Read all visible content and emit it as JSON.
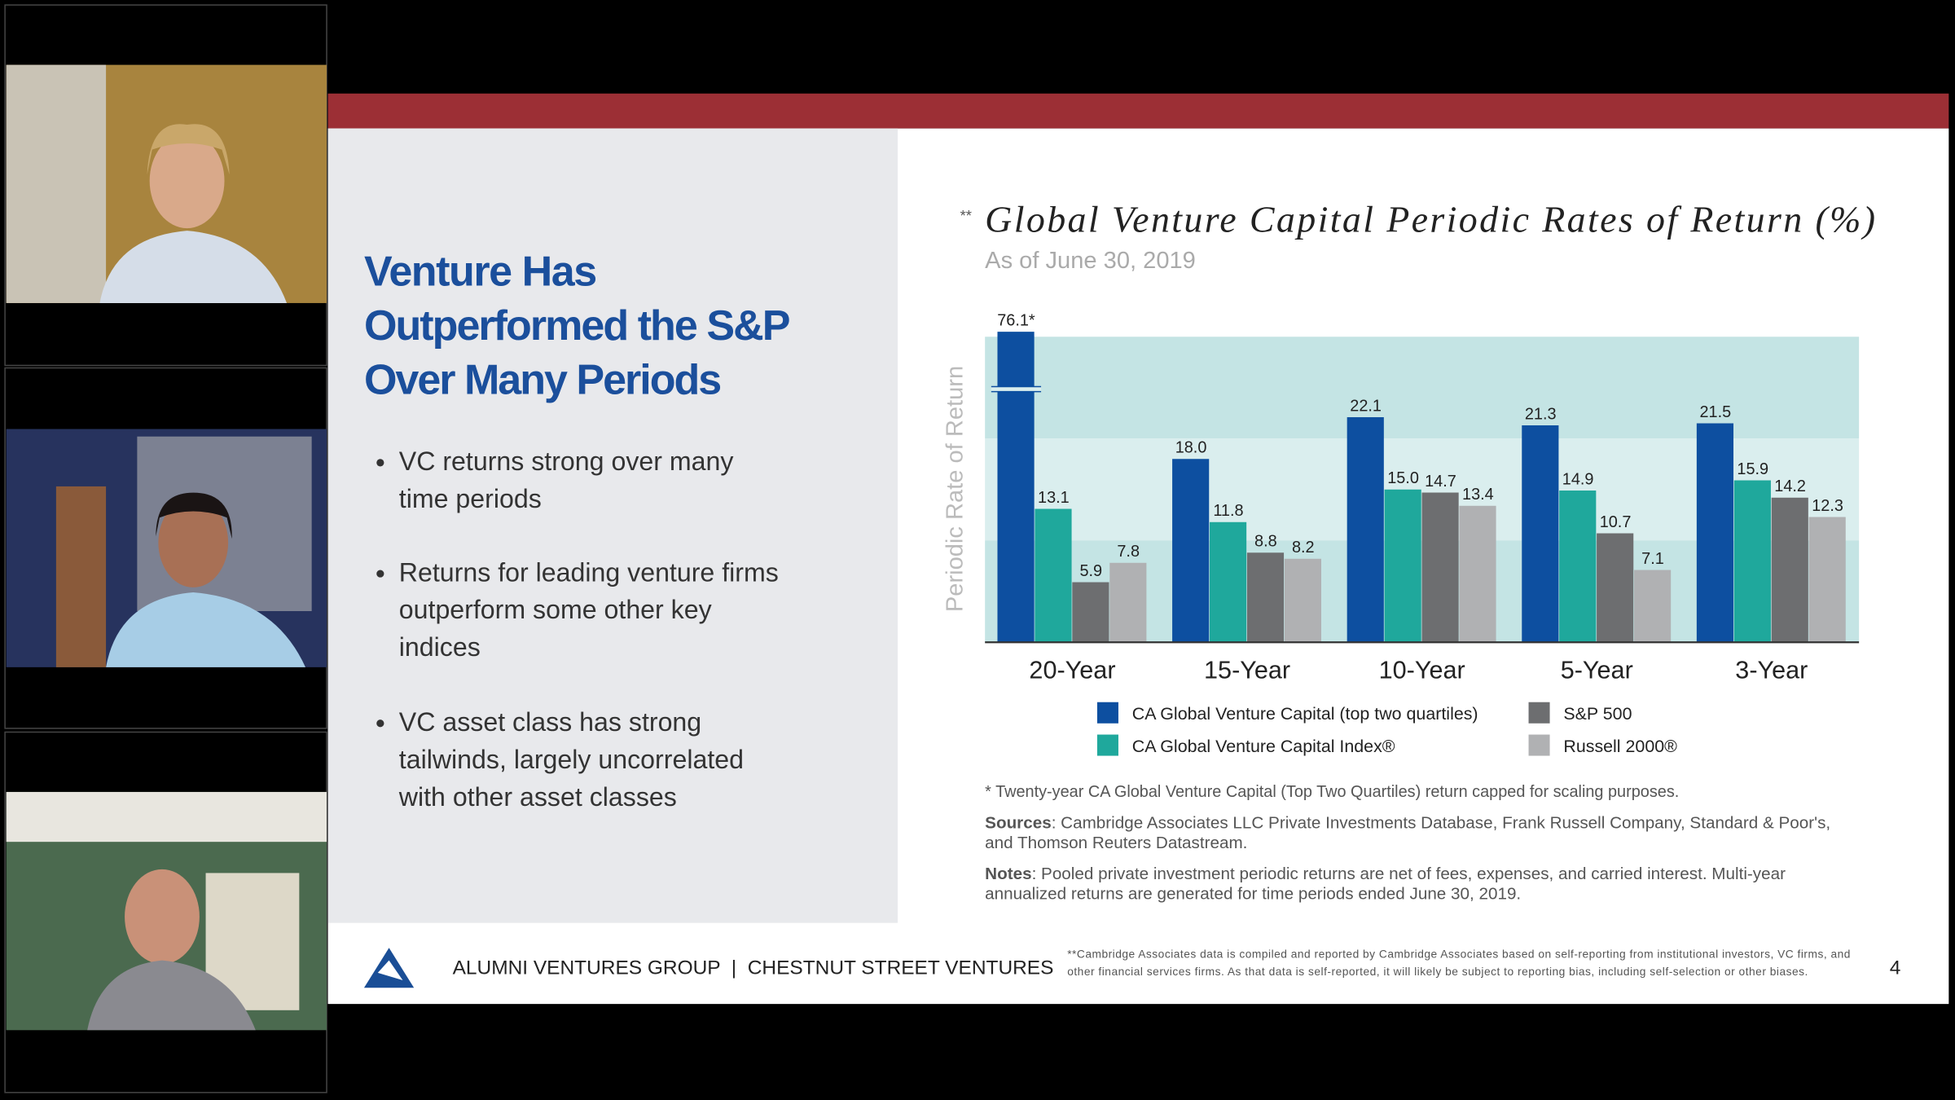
{
  "slide": {
    "heading": [
      "Venture Has",
      "Outperformed the S&P",
      "Over Many Periods"
    ],
    "bullets": [
      [
        "VC returns strong over many",
        "time periods"
      ],
      [
        "Returns for leading venture firms",
        "outperform some other key",
        "indices"
      ],
      [
        "VC asset class has strong",
        "tailwinds, largely uncorrelated",
        "with other asset classes"
      ]
    ],
    "title_mark": "**",
    "footnote": "* Twenty-year CA Global Venture Capital (Top Two Quartiles) return capped for scaling purposes.",
    "sources": {
      "label": "Sources",
      "lines": [
        ": Cambridge Associates LLC Private Investments Database, Frank Russell Company, Standard & Poor's,",
        "and Thomson Reuters Datastream."
      ]
    },
    "notes": {
      "label": "Notes",
      "lines": [
        ": Pooled private investment periodic returns are net of fees, expenses, and carried interest. Multi-year",
        "annualized returns are generated for time periods ended June 30, 2019."
      ]
    },
    "footer": {
      "brand": "ALUMNI VENTURES GROUP  |  CHESTNUT STREET VENTURES",
      "disclaimer": [
        "**Cambridge Associates data is compiled and reported by Cambridge Associates based on self-reporting from institutional investors, VC firms, and",
        "other financial services firms. As that data is self-reported, it will likely be subject to reporting bias, including self-selection or other biases."
      ],
      "page": "4"
    }
  },
  "chart_data": {
    "type": "bar",
    "title": "Global Venture Capital Periodic Rates of Return (%)",
    "subtitle": "As of June 30, 2019",
    "y_label": "Periodic Rate of Return",
    "categories": [
      "20-Year",
      "15-Year",
      "10-Year",
      "5-Year",
      "3-Year"
    ],
    "series": [
      {
        "name": "CA Global Venture Capital (top two quartiles)",
        "color": "#0d4fa0",
        "values": [
          76.1,
          18.0,
          22.1,
          21.3,
          21.5
        ],
        "value_labels": [
          "76.1*",
          "18.0",
          "22.1",
          "21.3",
          "21.5"
        ]
      },
      {
        "name": "CA Global Venture Capital Index®",
        "color": "#1fa89c",
        "values": [
          13.1,
          11.8,
          15.0,
          14.9,
          15.9
        ],
        "value_labels": [
          "13.1",
          "11.8",
          "15.0",
          "14.9",
          "15.9"
        ]
      },
      {
        "name": "S&P 500",
        "color": "#6d6e70",
        "values": [
          5.9,
          8.8,
          14.7,
          10.7,
          14.2
        ],
        "value_labels": [
          "5.9",
          "8.8",
          "14.7",
          "10.7",
          "14.2"
        ]
      },
      {
        "name": "Russell 2000®",
        "color": "#b0b1b3",
        "values": [
          7.8,
          8.2,
          13.4,
          7.1,
          12.3
        ],
        "value_labels": [
          "7.8",
          "8.2",
          "13.4",
          "7.1",
          "12.3"
        ]
      }
    ],
    "ylim": [
      0,
      30
    ]
  }
}
